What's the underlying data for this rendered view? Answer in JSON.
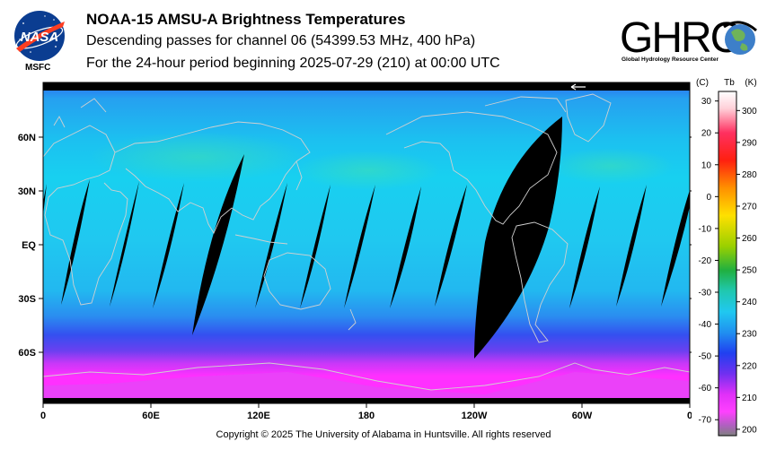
{
  "header": {
    "title": "NOAA-15 AMSU-A Brightness Temperatures",
    "subtitle_1": "Descending passes for channel 06 (54399.53 MHz, 400 hPa)",
    "subtitle_2": "For the 24-hour period beginning 2025-07-29 (210) at 00:00 UTC"
  },
  "logos": {
    "nasa_text": "NASA",
    "nasa_sub": "MSFC",
    "ghrc_text": "GHRC",
    "ghrc_sub": "Global Hydrology Resource Center"
  },
  "map": {
    "lon_labels": [
      "0",
      "60E",
      "120E",
      "180",
      "120W",
      "60W",
      "0"
    ],
    "lat_labels": [
      "60N",
      "30N",
      "EQ",
      "30S",
      "60S"
    ],
    "colors": {
      "ocean_warm": "#1ec8f0",
      "ocean_mid": "#2aa8f0",
      "polar_blue": "#3050f0",
      "antarctic": "#ff30ff",
      "gap": "#000000",
      "coast": "#c8c8c8"
    }
  },
  "colorbar": {
    "header_c": "(C)",
    "header_tb": "Tb",
    "header_k": "(K)",
    "celsius_labels": [
      "30",
      "20",
      "10",
      "0",
      "-10",
      "-20",
      "-30",
      "-40",
      "-50",
      "-60",
      "-70"
    ],
    "kelvin_labels": [
      "300",
      "290",
      "280",
      "270",
      "260",
      "250",
      "240",
      "230",
      "220",
      "210",
      "200"
    ],
    "celsius_range": [
      -75,
      33
    ],
    "kelvin_range": [
      198,
      306
    ]
  },
  "footer": {
    "copyright": "Copyright © 2025 The University of Alabama in Huntsville.  All rights reserved"
  }
}
